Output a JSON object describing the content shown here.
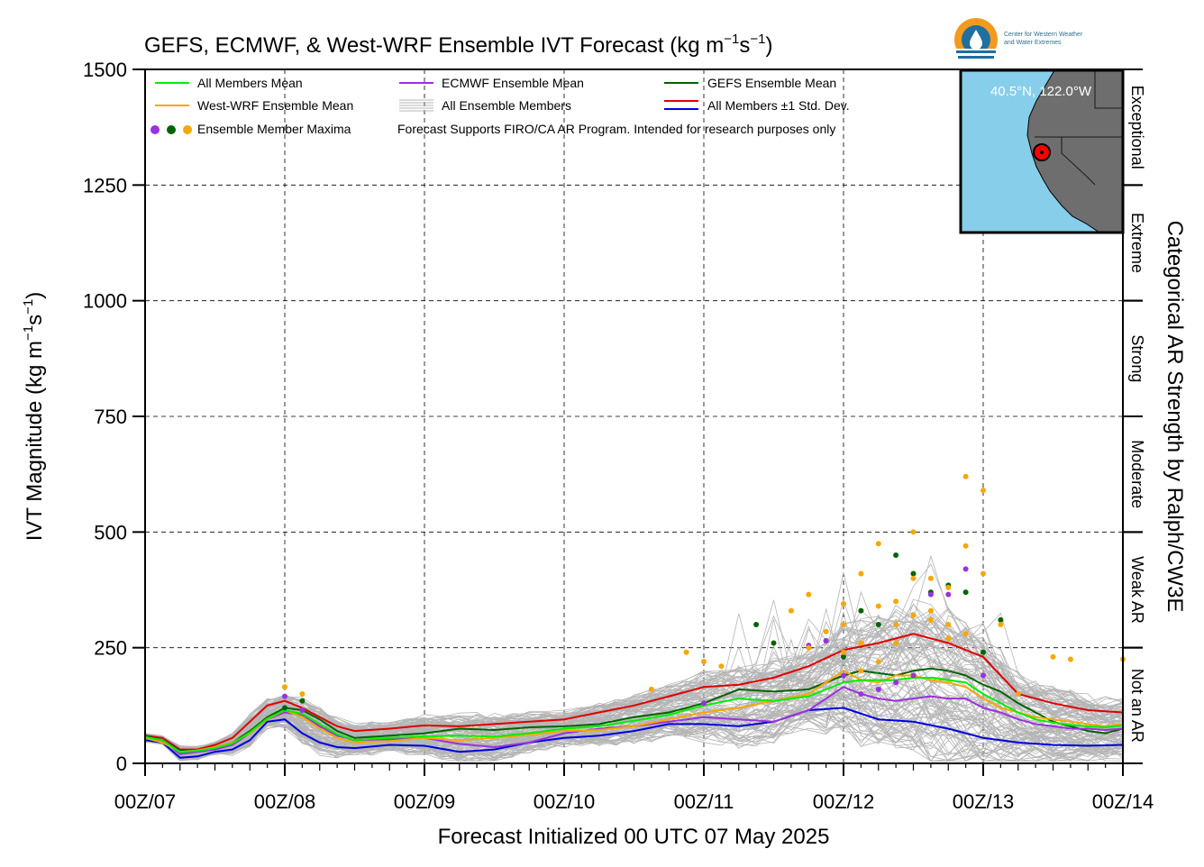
{
  "chart_data": {
    "type": "line",
    "title": "GEFS, ECMWF, & West-WRF Ensemble IVT Forecast (kg m",
    "title_sup1": "−1",
    "title_mid": "s",
    "title_sup2": "−1",
    "title_end": ")",
    "xlabel": "Forecast Initialized 00 UTC 07 May 2025",
    "ylabel_main": "IVT Magnitude (kg m",
    "ylabel_sup1": "−1",
    "ylabel_mid": "s",
    "ylabel_sup2": "−1",
    "ylabel_end": ")",
    "right_axis_label": "Categorical AR Strength by Ralph/CW3E",
    "ylim": [
      0,
      1500
    ],
    "xlim_hours": [
      0,
      168
    ],
    "grid": true,
    "x_ticks": [
      "00Z/07",
      "00Z/08",
      "00Z/09",
      "00Z/10",
      "00Z/11",
      "00Z/12",
      "00Z/13",
      "00Z/14"
    ],
    "y_ticks": [
      "0",
      "250",
      "500",
      "750",
      "1000",
      "1250",
      "1500"
    ],
    "categories": [
      {
        "label": "Not an AR",
        "min": 0,
        "max": 250
      },
      {
        "label": "Weak AR",
        "min": 250,
        "max": 500
      },
      {
        "label": "Moderate",
        "min": 500,
        "max": 750
      },
      {
        "label": "Strong",
        "min": 750,
        "max": 1000
      },
      {
        "label": "Extreme",
        "min": 1000,
        "max": 1250
      },
      {
        "label": "Exceptional",
        "min": 1250,
        "max": 1500
      }
    ],
    "legend": {
      "all_mean": "All Members Mean",
      "ecmwf_mean": "ECMWF Ensemble Mean",
      "gefs_mean": "GEFS Ensemble Mean",
      "wwrf_mean": "West-WRF Ensemble Mean",
      "all_members": "All Ensemble Members",
      "std_dev": "All Members ±1 Std. Dev.",
      "maxima": "Ensemble Member Maxima",
      "note": "Forecast Supports FIRO/CA AR Program. Intended for research purposes only"
    },
    "inset_location": "40.5°N, 122.0°W",
    "logo_line1": "Center for Western Weather",
    "logo_line2": "and Water Extremes",
    "colors": {
      "all_mean": "#00ee00",
      "ecmwf_mean": "#9b30e0",
      "gefs_mean": "#006400",
      "wwrf_mean": "#f5a800",
      "members": "#b4b4b4",
      "std_upper": "#e00000",
      "std_lower": "#0000e0",
      "inset_ocean": "#87ceeb",
      "inset_land": "#6e6e6e"
    },
    "x_hours_mean": [
      0,
      3,
      6,
      9,
      12,
      15,
      18,
      21,
      24,
      27,
      30,
      33,
      36,
      42,
      48,
      54,
      60,
      66,
      72,
      78,
      84,
      90,
      96,
      102,
      108,
      114,
      120,
      126,
      132,
      138,
      144,
      147,
      150,
      153,
      156,
      159,
      162,
      165,
      168
    ],
    "series": [
      {
        "key": "std_upper",
        "name": "All Members ±1 Std. Dev.",
        "x": [
          0,
          3,
          6,
          9,
          12,
          15,
          18,
          21,
          24,
          27,
          30,
          33,
          36,
          42,
          48,
          54,
          60,
          66,
          72,
          78,
          84,
          90,
          96,
          102,
          108,
          114,
          120,
          126,
          132,
          138,
          144,
          150,
          156,
          162,
          168
        ],
        "values": [
          60,
          55,
          30,
          30,
          40,
          55,
          90,
          125,
          135,
          120,
          100,
          80,
          70,
          75,
          82,
          80,
          85,
          90,
          95,
          110,
          125,
          145,
          165,
          170,
          185,
          210,
          245,
          260,
          280,
          260,
          230,
          150,
          130,
          115,
          110
        ]
      },
      {
        "key": "std_lower",
        "name": "All Members ±1 Std. Dev.",
        "x": [
          0,
          3,
          6,
          9,
          12,
          15,
          18,
          21,
          24,
          27,
          30,
          33,
          36,
          42,
          48,
          54,
          60,
          66,
          72,
          78,
          84,
          90,
          96,
          102,
          108,
          114,
          120,
          126,
          132,
          138,
          144,
          150,
          156,
          162,
          168
        ],
        "values": [
          50,
          45,
          12,
          15,
          25,
          30,
          50,
          90,
          95,
          65,
          45,
          35,
          33,
          40,
          38,
          25,
          30,
          45,
          55,
          60,
          70,
          85,
          85,
          80,
          90,
          115,
          120,
          95,
          90,
          75,
          55,
          45,
          40,
          38,
          40
        ]
      },
      {
        "key": "gefs_mean",
        "name": "GEFS Ensemble Mean",
        "x": [
          0,
          3,
          6,
          9,
          12,
          15,
          18,
          21,
          24,
          27,
          30,
          33,
          36,
          42,
          48,
          54,
          60,
          66,
          72,
          78,
          84,
          90,
          96,
          102,
          108,
          114,
          120,
          123,
          126,
          129,
          132,
          135,
          138,
          141,
          144,
          147,
          150,
          153,
          156,
          159,
          162,
          165,
          168
        ],
        "values": [
          60,
          50,
          28,
          28,
          35,
          45,
          70,
          100,
          120,
          115,
          95,
          70,
          55,
          60,
          65,
          75,
          72,
          78,
          80,
          85,
          100,
          110,
          130,
          160,
          155,
          160,
          190,
          200,
          195,
          190,
          200,
          205,
          200,
          190,
          170,
          155,
          130,
          110,
          90,
          80,
          70,
          65,
          75
        ]
      },
      {
        "key": "ecmwf_mean",
        "name": "ECMWF Ensemble Mean",
        "x": [
          0,
          3,
          6,
          9,
          12,
          15,
          18,
          21,
          24,
          27,
          30,
          33,
          36,
          42,
          48,
          54,
          60,
          66,
          72,
          78,
          84,
          90,
          96,
          102,
          108,
          114,
          120,
          123,
          126,
          129,
          132,
          135,
          138,
          141,
          144,
          147,
          150,
          153,
          156,
          159,
          162,
          165,
          168
        ],
        "values": [
          55,
          50,
          20,
          25,
          30,
          40,
          65,
          95,
          110,
          105,
          80,
          60,
          50,
          52,
          55,
          42,
          35,
          45,
          65,
          75,
          80,
          90,
          100,
          95,
          90,
          115,
          165,
          150,
          140,
          135,
          140,
          145,
          140,
          140,
          120,
          110,
          95,
          85,
          80,
          75,
          75,
          72,
          75
        ]
      },
      {
        "key": "wwrf_mean",
        "name": "West-WRF Ensemble Mean",
        "x": [
          0,
          3,
          6,
          9,
          12,
          15,
          18,
          21,
          24,
          27,
          30,
          33,
          36,
          42,
          48,
          54,
          60,
          66,
          72,
          78,
          84,
          90,
          96,
          102,
          108,
          114,
          120,
          123,
          126,
          129,
          132,
          135,
          138,
          141,
          144,
          147,
          150,
          153,
          156,
          159,
          162,
          165,
          168
        ],
        "values": [
          55,
          45,
          25,
          28,
          35,
          45,
          65,
          95,
          115,
          100,
          75,
          55,
          45,
          48,
          55,
          50,
          55,
          62,
          70,
          72,
          80,
          95,
          110,
          120,
          135,
          150,
          200,
          180,
          175,
          190,
          190,
          180,
          175,
          165,
          140,
          120,
          110,
          100,
          95,
          90,
          85,
          80,
          85
        ]
      },
      {
        "key": "all_mean",
        "name": "All Members Mean",
        "x": [
          0,
          3,
          6,
          9,
          12,
          15,
          18,
          21,
          24,
          27,
          30,
          33,
          36,
          42,
          48,
          54,
          60,
          66,
          72,
          78,
          84,
          90,
          96,
          102,
          108,
          114,
          120,
          123,
          126,
          129,
          132,
          135,
          138,
          141,
          144,
          147,
          150,
          153,
          156,
          159,
          162,
          165,
          168
        ],
        "values": [
          57,
          50,
          24,
          27,
          33,
          43,
          67,
          97,
          115,
          107,
          85,
          63,
          50,
          55,
          58,
          60,
          58,
          65,
          75,
          80,
          92,
          105,
          125,
          140,
          135,
          145,
          175,
          180,
          180,
          180,
          185,
          185,
          180,
          175,
          150,
          130,
          110,
          95,
          88,
          83,
          80,
          78,
          82
        ]
      }
    ],
    "maxima": {
      "ecmwf": [
        [
          24,
          145
        ],
        [
          27,
          115
        ],
        [
          96,
          130
        ],
        [
          114,
          255
        ],
        [
          117,
          265
        ],
        [
          120,
          190
        ],
        [
          123,
          150
        ],
        [
          126,
          160
        ],
        [
          129,
          175
        ],
        [
          132,
          190
        ],
        [
          135,
          365
        ],
        [
          138,
          365
        ],
        [
          141,
          420
        ],
        [
          144,
          190
        ]
      ],
      "gefs": [
        [
          24,
          120
        ],
        [
          27,
          135
        ],
        [
          105,
          300
        ],
        [
          108,
          260
        ],
        [
          117,
          265
        ],
        [
          120,
          230
        ],
        [
          123,
          330
        ],
        [
          126,
          300
        ],
        [
          129,
          450
        ],
        [
          132,
          410
        ],
        [
          135,
          370
        ],
        [
          138,
          385
        ],
        [
          141,
          370
        ],
        [
          144,
          240
        ],
        [
          147,
          310
        ]
      ],
      "wwrf": [
        [
          24,
          165
        ],
        [
          27,
          150
        ],
        [
          87,
          160
        ],
        [
          93,
          240
        ],
        [
          96,
          220
        ],
        [
          99,
          210
        ],
        [
          111,
          330
        ],
        [
          114,
          365
        ],
        [
          117,
          285
        ],
        [
          120,
          345
        ],
        [
          123,
          410
        ],
        [
          126,
          475
        ],
        [
          129,
          300
        ],
        [
          132,
          500
        ],
        [
          135,
          400
        ],
        [
          138,
          380
        ],
        [
          141,
          620
        ],
        [
          144,
          590
        ],
        [
          147,
          300
        ],
        [
          150,
          150
        ],
        [
          156,
          230
        ],
        [
          159,
          225
        ],
        [
          168,
          225
        ],
        [
          114,
          250
        ],
        [
          120,
          240
        ],
        [
          123,
          200
        ],
        [
          126,
          220
        ],
        [
          129,
          260
        ],
        [
          132,
          320
        ],
        [
          135,
          330
        ],
        [
          138,
          270
        ],
        [
          141,
          470
        ],
        [
          144,
          410
        ],
        [
          120,
          300
        ],
        [
          123,
          260
        ],
        [
          126,
          340
        ],
        [
          129,
          350
        ],
        [
          132,
          400
        ],
        [
          135,
          310
        ],
        [
          138,
          300
        ],
        [
          141,
          280
        ]
      ]
    }
  }
}
